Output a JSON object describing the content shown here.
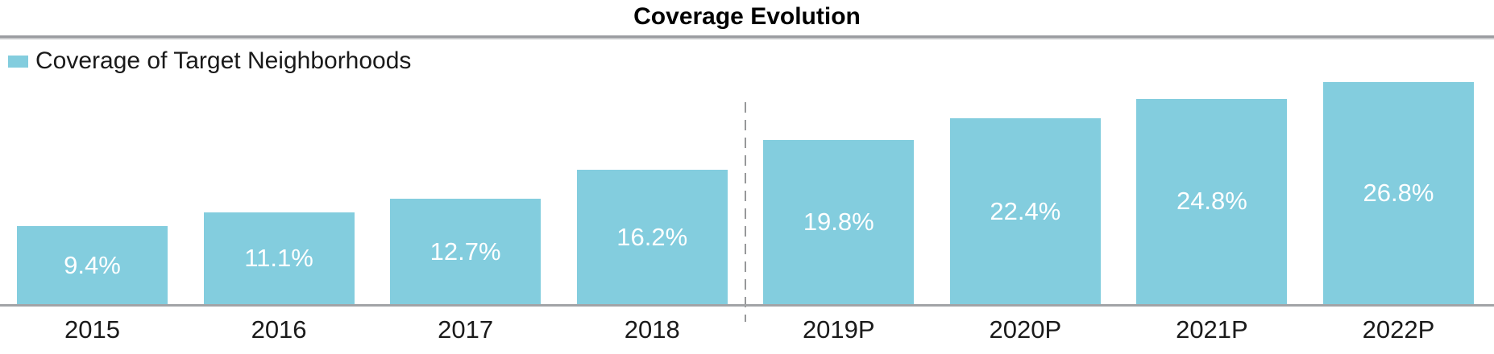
{
  "title": "Coverage Evolution",
  "legend": {
    "label": "Coverage of Target Neighborhoods",
    "swatch_color": "#83CDDE"
  },
  "colors": {
    "bar": "#83CDDE",
    "bar_label": "#FFFFFF",
    "axis_line": "#A2A4A7",
    "divider": "#97989A",
    "text": "#1A1A1A"
  },
  "chart_data": {
    "type": "bar",
    "title": "Coverage Evolution",
    "categories": [
      "2015",
      "2016",
      "2017",
      "2018",
      "2019P",
      "2020P",
      "2021P",
      "2022P"
    ],
    "values": [
      9.4,
      11.1,
      12.7,
      16.2,
      19.8,
      22.4,
      24.8,
      26.8
    ],
    "value_labels": [
      "9.4%",
      "11.1%",
      "12.7%",
      "16.2%",
      "19.8%",
      "22.4%",
      "24.8%",
      "26.8%"
    ],
    "series": [
      {
        "name": "Coverage of Target Neighborhoods",
        "values": [
          9.4,
          11.1,
          12.7,
          16.2,
          19.8,
          22.4,
          24.8,
          26.8
        ]
      }
    ],
    "xlabel": "",
    "ylabel": "",
    "ylim": [
      0,
      32
    ],
    "grid": false,
    "legend_position": "top-left",
    "value_label_position": "inside-center",
    "divider_after_category": "2018"
  }
}
